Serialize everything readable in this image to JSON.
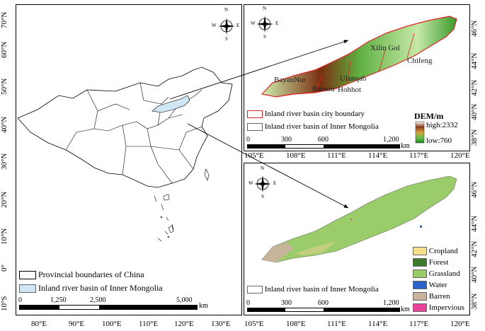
{
  "left_map": {
    "lat_labels": [
      "70°N",
      "60°N",
      "50°N",
      "40°N",
      "30°N",
      "20°N",
      "10°N",
      "0°",
      "10°S"
    ],
    "lon_labels": [
      "80°E",
      "90°E",
      "100°E",
      "110°E",
      "120°E",
      "130°E"
    ],
    "legend": {
      "provincial": "Provincial boundaries of China",
      "basin": "Inland river basin of Inner Mongolia"
    },
    "scalebar": {
      "ticks": [
        "0",
        "1,250",
        "2,500",
        "5,000"
      ],
      "unit": "km"
    }
  },
  "dem_map": {
    "lat_labels": [
      "46°N",
      "44°N",
      "42°N",
      "40°N",
      "38°N"
    ],
    "lon_labels": [
      "105°E",
      "108°E",
      "111°E",
      "114°E",
      "117°E",
      "120°E"
    ],
    "cities": [
      "Xilin Gol",
      "Chifeng",
      "BayanNur",
      "Ulanqab",
      "Baotou",
      "Hohhot"
    ],
    "legend": {
      "city_boundary": "Inland river basin city boundary",
      "basin": "Inland river basin of Inner Mongolia"
    },
    "dem_title": "DEM/m",
    "dem_high": "high:2332",
    "dem_low": "low:760",
    "scalebar": {
      "ticks": [
        "0",
        "300",
        "600",
        "1,200"
      ],
      "unit": "km"
    }
  },
  "lc_map": {
    "lat_labels": [
      "46°N",
      "44°N",
      "42°N",
      "40°N",
      "38°N"
    ],
    "lon_labels": [
      "105°E",
      "108°E",
      "111°E",
      "114°E",
      "117°E",
      "120°E"
    ],
    "legend_basin": "Inland river basin of Inner Mongolia",
    "scalebar": {
      "ticks": [
        "0",
        "300",
        "600",
        "1,200"
      ],
      "unit": "km"
    },
    "classes": [
      {
        "name": "Cropland",
        "color": "#f7e08c"
      },
      {
        "name": "Forest",
        "color": "#3a7a2a"
      },
      {
        "name": "Grassland",
        "color": "#9acd6a"
      },
      {
        "name": "Water",
        "color": "#2b62c8"
      },
      {
        "name": "Barren",
        "color": "#c8b49a"
      },
      {
        "name": "Impervious",
        "color": "#e8439a"
      }
    ]
  },
  "compass": {
    "n": "N",
    "s": "S",
    "e": "E",
    "w": "W"
  }
}
